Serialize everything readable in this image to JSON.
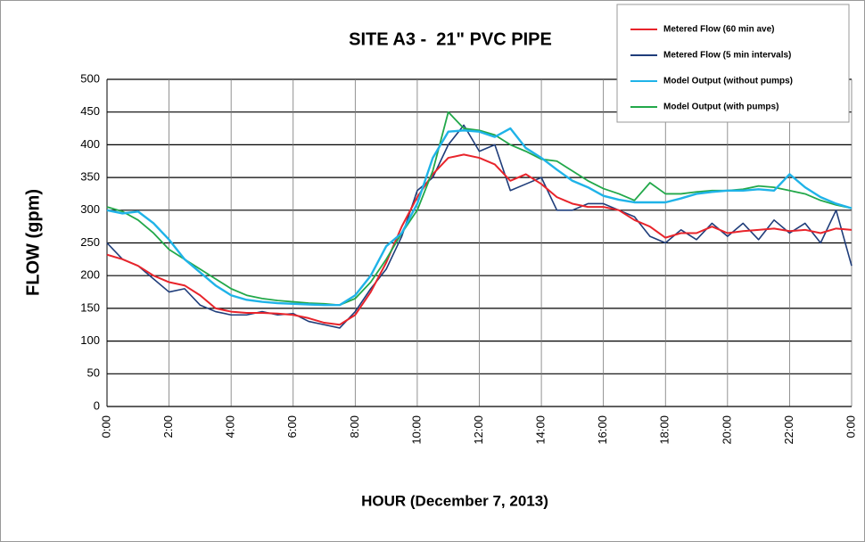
{
  "chart_data": {
    "type": "line",
    "title": "SITE A3 -  21\" PVC PIPE",
    "x_label": "HOUR (December 7, 2013)",
    "y_label": "FLOW (gpm)",
    "x": [
      0,
      0.5,
      1,
      1.5,
      2,
      2.5,
      3,
      3.5,
      4,
      4.5,
      5,
      5.5,
      6,
      6.5,
      7,
      7.5,
      8,
      8.5,
      9,
      9.5,
      10,
      10.5,
      11,
      11.5,
      12,
      12.5,
      13,
      13.5,
      14,
      14.5,
      15,
      15.5,
      16,
      16.5,
      17,
      17.5,
      18,
      18.5,
      19,
      19.5,
      20,
      20.5,
      21,
      21.5,
      22,
      22.5,
      23,
      23.5,
      24
    ],
    "series": [
      {
        "name": "Metered Flow (60 min ave)",
        "color": "#e8242b",
        "values": [
          232,
          225,
          215,
          200,
          190,
          185,
          170,
          150,
          145,
          143,
          143,
          142,
          140,
          135,
          128,
          125,
          140,
          175,
          220,
          275,
          320,
          355,
          380,
          385,
          380,
          370,
          345,
          355,
          340,
          320,
          310,
          305,
          305,
          300,
          285,
          275,
          258,
          265,
          265,
          275,
          265,
          268,
          270,
          272,
          268,
          270,
          265,
          272,
          270
        ]
      },
      {
        "name": "Metered Flow (5 min intervals)",
        "color": "#1f3d7a",
        "values": [
          250,
          225,
          215,
          195,
          175,
          180,
          155,
          145,
          140,
          140,
          145,
          140,
          142,
          130,
          125,
          120,
          145,
          180,
          210,
          260,
          330,
          350,
          400,
          430,
          390,
          400,
          330,
          340,
          350,
          300,
          300,
          310,
          310,
          300,
          290,
          260,
          250,
          270,
          255,
          280,
          260,
          280,
          255,
          285,
          265,
          280,
          250,
          300,
          215
        ]
      },
      {
        "name": "Model Output (without pumps)",
        "color": "#1fb3e8",
        "values": [
          300,
          295,
          298,
          280,
          255,
          225,
          205,
          185,
          170,
          163,
          160,
          158,
          157,
          156,
          155,
          155,
          170,
          200,
          245,
          265,
          310,
          380,
          420,
          422,
          420,
          412,
          425,
          395,
          380,
          362,
          345,
          335,
          322,
          316,
          312,
          312,
          312,
          318,
          325,
          328,
          330,
          330,
          332,
          330,
          355,
          335,
          320,
          310,
          303
        ]
      },
      {
        "name": "Model Output (with pumps)",
        "color": "#22a84a",
        "values": [
          305,
          298,
          285,
          265,
          240,
          225,
          210,
          195,
          180,
          170,
          165,
          162,
          160,
          158,
          157,
          155,
          165,
          190,
          225,
          265,
          300,
          360,
          450,
          425,
          422,
          415,
          400,
          390,
          378,
          375,
          360,
          345,
          333,
          325,
          315,
          342,
          325,
          325,
          328,
          330,
          330,
          332,
          337,
          335,
          330,
          325,
          315,
          308,
          303
        ]
      }
    ],
    "xlim": [
      0,
      24
    ],
    "xticks": [
      {
        "value": 0,
        "label": "0:00"
      },
      {
        "value": 2,
        "label": "2:00"
      },
      {
        "value": 4,
        "label": "4:00"
      },
      {
        "value": 6,
        "label": "6:00"
      },
      {
        "value": 8,
        "label": "8:00"
      },
      {
        "value": 10,
        "label": "10:00"
      },
      {
        "value": 12,
        "label": "12:00"
      },
      {
        "value": 14,
        "label": "14:00"
      },
      {
        "value": 16,
        "label": "16:00"
      },
      {
        "value": 18,
        "label": "18:00"
      },
      {
        "value": 20,
        "label": "20:00"
      },
      {
        "value": 22,
        "label": "22:00"
      },
      {
        "value": 24,
        "label": "0:00"
      }
    ],
    "ylim": [
      0,
      500
    ],
    "yticks": [
      0,
      50,
      100,
      150,
      200,
      250,
      300,
      350,
      400,
      450,
      500
    ],
    "grid": true,
    "legend": "upper right"
  }
}
